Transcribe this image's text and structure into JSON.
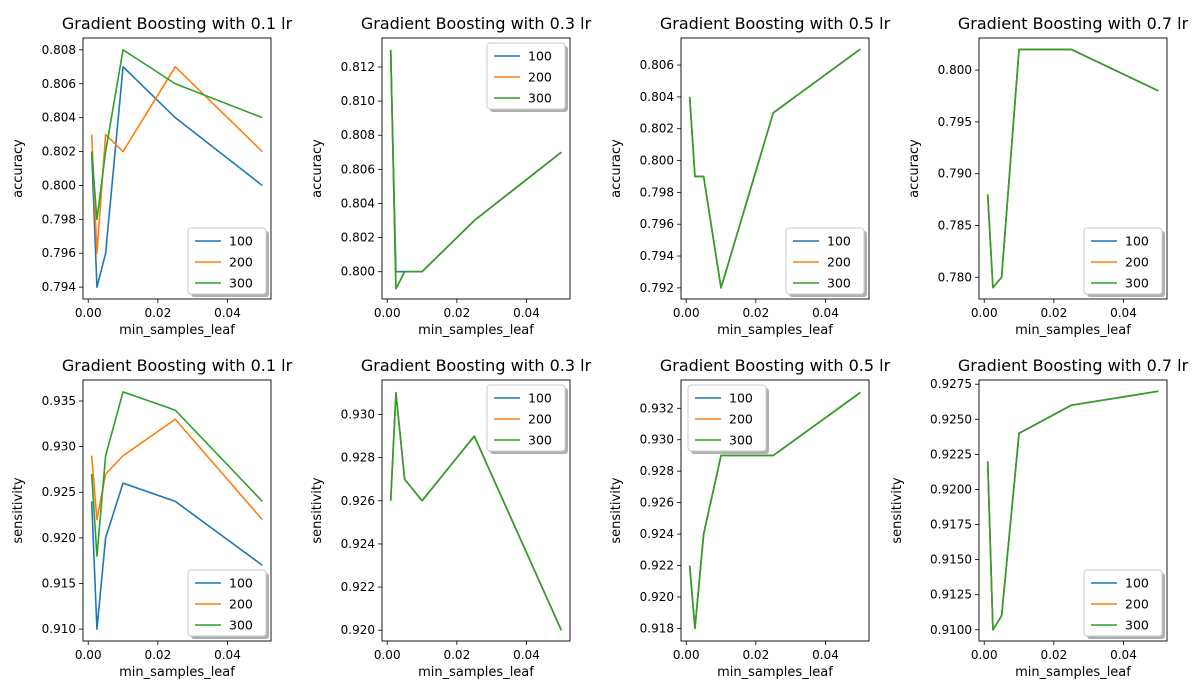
{
  "figure": {
    "colors": [
      "#1f77b4",
      "#ff7f0e",
      "#2ca02c"
    ]
  },
  "chart_data": [
    {
      "type": "line",
      "title": "Gradient Boosting with 0.1 lr",
      "xlabel": "min_samples_leaf",
      "ylabel": "accuracy",
      "x": [
        0.001,
        0.0025,
        0.005,
        0.01,
        0.025,
        0.05
      ],
      "xlim": [
        -0.0015,
        0.0525
      ],
      "ylim": [
        0.7933,
        0.8087
      ],
      "xticks": [
        0.0,
        0.02,
        0.04
      ],
      "xtick_labels": [
        "0.00",
        "0.02",
        "0.04"
      ],
      "yticks": [
        0.794,
        0.796,
        0.798,
        0.8,
        0.802,
        0.804,
        0.806,
        0.808
      ],
      "ytick_labels": [
        "0.794",
        "0.796",
        "0.798",
        "0.800",
        "0.802",
        "0.804",
        "0.806",
        "0.808"
      ],
      "legend": "bottom-right",
      "series": [
        {
          "name": "100",
          "values": [
            0.802,
            0.794,
            0.796,
            0.807,
            0.804,
            0.8
          ]
        },
        {
          "name": "200",
          "values": [
            0.803,
            0.796,
            0.803,
            0.802,
            0.807,
            0.802
          ]
        },
        {
          "name": "300",
          "values": [
            0.802,
            0.798,
            0.802,
            0.808,
            0.806,
            0.804
          ]
        }
      ]
    },
    {
      "type": "line",
      "title": "Gradient Boosting with 0.3 lr",
      "xlabel": "min_samples_leaf",
      "ylabel": "accuracy",
      "x": [
        0.001,
        0.0025,
        0.005,
        0.01,
        0.025,
        0.05
      ],
      "xlim": [
        -0.0015,
        0.0525
      ],
      "ylim": [
        0.7984,
        0.8137
      ],
      "xticks": [
        0.0,
        0.02,
        0.04
      ],
      "xtick_labels": [
        "0.00",
        "0.02",
        "0.04"
      ],
      "yticks": [
        0.8,
        0.802,
        0.804,
        0.806,
        0.808,
        0.81,
        0.812
      ],
      "ytick_labels": [
        "0.800",
        "0.802",
        "0.804",
        "0.806",
        "0.808",
        "0.810",
        "0.812"
      ],
      "legend": "top-right",
      "series": [
        {
          "name": "100",
          "values": [
            0.813,
            0.8,
            0.8,
            0.8,
            0.803,
            0.807
          ]
        },
        {
          "name": "200",
          "values": [
            0.813,
            0.799,
            0.8,
            0.8,
            0.803,
            0.807
          ]
        },
        {
          "name": "300",
          "values": [
            0.813,
            0.799,
            0.8,
            0.8,
            0.803,
            0.807
          ]
        }
      ]
    },
    {
      "type": "line",
      "title": "Gradient Boosting with 0.5 lr",
      "xlabel": "min_samples_leaf",
      "ylabel": "accuracy",
      "x": [
        0.001,
        0.0025,
        0.005,
        0.01,
        0.025,
        0.05
      ],
      "xlim": [
        -0.0015,
        0.0525
      ],
      "ylim": [
        0.7913,
        0.8077
      ],
      "xticks": [
        0.0,
        0.02,
        0.04
      ],
      "xtick_labels": [
        "0.00",
        "0.02",
        "0.04"
      ],
      "yticks": [
        0.792,
        0.794,
        0.796,
        0.798,
        0.8,
        0.802,
        0.804,
        0.806
      ],
      "ytick_labels": [
        "0.792",
        "0.794",
        "0.796",
        "0.798",
        "0.800",
        "0.802",
        "0.804",
        "0.806"
      ],
      "legend": "bottom-right",
      "series": [
        {
          "name": "100",
          "values": [
            0.804,
            0.799,
            0.799,
            0.792,
            0.803,
            0.807
          ]
        },
        {
          "name": "200",
          "values": [
            0.804,
            0.799,
            0.799,
            0.792,
            0.803,
            0.807
          ]
        },
        {
          "name": "300",
          "values": [
            0.804,
            0.799,
            0.799,
            0.792,
            0.803,
            0.807
          ]
        }
      ]
    },
    {
      "type": "line",
      "title": "Gradient Boosting with 0.7 lr",
      "xlabel": "min_samples_leaf",
      "ylabel": "accuracy",
      "x": [
        0.001,
        0.0025,
        0.005,
        0.01,
        0.025,
        0.05
      ],
      "xlim": [
        -0.0015,
        0.0525
      ],
      "ylim": [
        0.7779,
        0.8031
      ],
      "xticks": [
        0.0,
        0.02,
        0.04
      ],
      "xtick_labels": [
        "0.00",
        "0.02",
        "0.04"
      ],
      "yticks": [
        0.78,
        0.785,
        0.79,
        0.795,
        0.8
      ],
      "ytick_labels": [
        "0.780",
        "0.785",
        "0.790",
        "0.795",
        "0.800"
      ],
      "legend": "bottom-right",
      "series": [
        {
          "name": "100",
          "values": [
            0.788,
            0.779,
            0.78,
            0.802,
            0.802,
            0.798
          ]
        },
        {
          "name": "200",
          "values": [
            0.788,
            0.779,
            0.78,
            0.802,
            0.802,
            0.798
          ]
        },
        {
          "name": "300",
          "values": [
            0.788,
            0.779,
            0.78,
            0.802,
            0.802,
            0.798
          ]
        }
      ]
    },
    {
      "type": "line",
      "title": "Gradient Boosting with 0.1 lr",
      "xlabel": "min_samples_leaf",
      "ylabel": "sensitivity",
      "x": [
        0.001,
        0.0025,
        0.005,
        0.01,
        0.025,
        0.05
      ],
      "xlim": [
        -0.0015,
        0.0525
      ],
      "ylim": [
        0.9087,
        0.9373
      ],
      "xticks": [
        0.0,
        0.02,
        0.04
      ],
      "xtick_labels": [
        "0.00",
        "0.02",
        "0.04"
      ],
      "yticks": [
        0.91,
        0.915,
        0.92,
        0.925,
        0.93,
        0.935
      ],
      "ytick_labels": [
        "0.910",
        "0.915",
        "0.920",
        "0.925",
        "0.930",
        "0.935"
      ],
      "legend": "bottom-right",
      "series": [
        {
          "name": "100",
          "values": [
            0.924,
            0.91,
            0.92,
            0.926,
            0.924,
            0.917
          ]
        },
        {
          "name": "200",
          "values": [
            0.929,
            0.922,
            0.927,
            0.929,
            0.933,
            0.922
          ]
        },
        {
          "name": "300",
          "values": [
            0.927,
            0.918,
            0.929,
            0.936,
            0.934,
            0.924
          ]
        }
      ]
    },
    {
      "type": "line",
      "title": "Gradient Boosting with 0.3 lr",
      "xlabel": "min_samples_leaf",
      "ylabel": "sensitivity",
      "x": [
        0.001,
        0.0025,
        0.005,
        0.01,
        0.025,
        0.05
      ],
      "xlim": [
        -0.0015,
        0.0525
      ],
      "ylim": [
        0.9195,
        0.9316
      ],
      "xticks": [
        0.0,
        0.02,
        0.04
      ],
      "xtick_labels": [
        "0.00",
        "0.02",
        "0.04"
      ],
      "yticks": [
        0.92,
        0.922,
        0.924,
        0.926,
        0.928,
        0.93
      ],
      "ytick_labels": [
        "0.920",
        "0.922",
        "0.924",
        "0.926",
        "0.928",
        "0.930"
      ],
      "legend": "top-right",
      "series": [
        {
          "name": "100",
          "values": [
            0.926,
            0.931,
            0.927,
            0.926,
            0.929,
            0.92
          ]
        },
        {
          "name": "200",
          "values": [
            0.926,
            0.931,
            0.927,
            0.926,
            0.929,
            0.92
          ]
        },
        {
          "name": "300",
          "values": [
            0.926,
            0.931,
            0.927,
            0.926,
            0.929,
            0.92
          ]
        }
      ]
    },
    {
      "type": "line",
      "title": "Gradient Boosting with 0.5 lr",
      "xlabel": "min_samples_leaf",
      "ylabel": "sensitivity",
      "x": [
        0.001,
        0.0025,
        0.005,
        0.01,
        0.025,
        0.05
      ],
      "xlim": [
        -0.0015,
        0.0525
      ],
      "ylim": [
        0.9172,
        0.9338
      ],
      "xticks": [
        0.0,
        0.02,
        0.04
      ],
      "xtick_labels": [
        "0.00",
        "0.02",
        "0.04"
      ],
      "yticks": [
        0.918,
        0.92,
        0.922,
        0.924,
        0.926,
        0.928,
        0.93,
        0.932
      ],
      "ytick_labels": [
        "0.918",
        "0.920",
        "0.922",
        "0.924",
        "0.926",
        "0.928",
        "0.930",
        "0.932"
      ],
      "legend": "top-left",
      "series": [
        {
          "name": "100",
          "values": [
            0.922,
            0.918,
            0.924,
            0.929,
            0.929,
            0.933
          ]
        },
        {
          "name": "200",
          "values": [
            0.922,
            0.918,
            0.924,
            0.929,
            0.929,
            0.933
          ]
        },
        {
          "name": "300",
          "values": [
            0.922,
            0.918,
            0.924,
            0.929,
            0.929,
            0.933
          ]
        }
      ]
    },
    {
      "type": "line",
      "title": "Gradient Boosting with 0.7 lr",
      "xlabel": "min_samples_leaf",
      "ylabel": "sensitivity",
      "x": [
        0.001,
        0.0025,
        0.005,
        0.01,
        0.025,
        0.05
      ],
      "xlim": [
        -0.0015,
        0.0525
      ],
      "ylim": [
        0.9092,
        0.9278
      ],
      "xticks": [
        0.0,
        0.02,
        0.04
      ],
      "xtick_labels": [
        "0.00",
        "0.02",
        "0.04"
      ],
      "yticks": [
        0.91,
        0.9125,
        0.915,
        0.9175,
        0.92,
        0.9225,
        0.925,
        0.9275
      ],
      "ytick_labels": [
        "0.9100",
        "0.9125",
        "0.9150",
        "0.9175",
        "0.9200",
        "0.9225",
        "0.9250",
        "0.9275"
      ],
      "legend": "bottom-right",
      "series": [
        {
          "name": "100",
          "values": [
            0.922,
            0.91,
            0.911,
            0.924,
            0.926,
            0.927
          ]
        },
        {
          "name": "200",
          "values": [
            0.922,
            0.91,
            0.911,
            0.924,
            0.926,
            0.927
          ]
        },
        {
          "name": "300",
          "values": [
            0.922,
            0.91,
            0.911,
            0.924,
            0.926,
            0.927
          ]
        }
      ]
    }
  ]
}
